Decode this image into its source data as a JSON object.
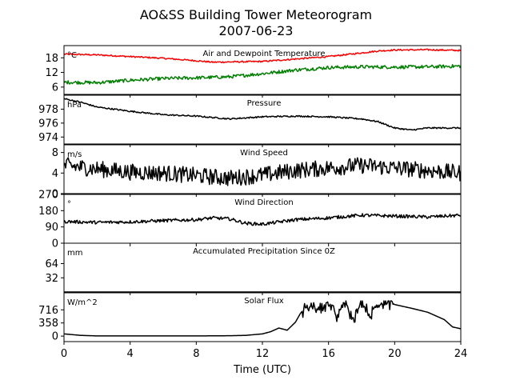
{
  "chart_data": {
    "type": "line",
    "title": "AO&SS Building Tower Meteorogram",
    "subtitle": "2007-06-23",
    "xlabel": "Time (UTC)",
    "xlim": [
      0,
      24
    ],
    "xticks": [
      0,
      4,
      8,
      12,
      16,
      20,
      24
    ],
    "panels": [
      {
        "id": "temp",
        "title": "Air and Dewpoint Temperature",
        "unit": "°C",
        "ylim": [
          3,
          23
        ],
        "yticks": [
          6,
          12,
          18
        ],
        "series": [
          {
            "color": "#ff0000",
            "noise": 0.3,
            "x": [
              0,
              2,
              4,
              6,
              8,
              9,
              10,
              12,
              14,
              16,
              18,
              19,
              20,
              22,
              24
            ],
            "y": [
              19.5,
              19.2,
              18.5,
              17.8,
              16.8,
              16.2,
              16.3,
              16.5,
              17.5,
              18.5,
              20.0,
              20.8,
              21.2,
              21.3,
              21.0
            ]
          },
          {
            "color": "#008000",
            "noise": 0.7,
            "x": [
              0,
              2,
              4,
              6,
              8,
              10,
              12,
              14,
              16,
              18,
              20,
              22,
              24
            ],
            "y": [
              8.0,
              7.8,
              8.8,
              9.5,
              9.8,
              10.2,
              11.5,
              13.0,
              14.0,
              14.3,
              14.2,
              14.3,
              14.6
            ]
          }
        ]
      },
      {
        "id": "pressure",
        "title": "Pressure",
        "unit": "hPa",
        "ylim": [
          973,
          980
        ],
        "yticks": [
          974,
          976,
          978
        ],
        "series": [
          {
            "color": "#000000",
            "noise": 0.1,
            "x": [
              0,
              1,
              2,
              4,
              6,
              8,
              10,
              12,
              14,
              16,
              18,
              19,
              20,
              21,
              22,
              24
            ],
            "y": [
              979.5,
              979.0,
              978.3,
              977.7,
              977.2,
              977.0,
              976.6,
              976.9,
              977.0,
              976.9,
              976.6,
              976.2,
              975.3,
              975.0,
              975.3,
              975.3
            ]
          }
        ]
      },
      {
        "id": "wind_speed",
        "title": "Wind Speed",
        "unit": "m/s",
        "ylim": [
          0,
          9.5
        ],
        "yticks": [
          0,
          4,
          8
        ],
        "series": [
          {
            "color": "#000000",
            "noise": 1.6,
            "x": [
              0,
              2,
              4,
              6,
              8,
              10,
              12,
              14,
              16,
              18,
              20,
              22,
              24
            ],
            "y": [
              5.5,
              4.8,
              4.2,
              4.0,
              3.5,
              3.0,
              3.6,
              4.5,
              5.0,
              5.5,
              5.0,
              4.5,
              4.0
            ]
          }
        ]
      },
      {
        "id": "wind_dir",
        "title": "Wind Direction",
        "unit": "°",
        "ylim": [
          0,
          270
        ],
        "yticks": [
          0,
          90,
          180,
          270
        ],
        "series": [
          {
            "color": "#000000",
            "noise": 9,
            "x": [
              0,
              2,
              4,
              6,
              8,
              9,
              10,
              11,
              12,
              14,
              16,
              18,
              20,
              22,
              24
            ],
            "y": [
              120,
              115,
              118,
              125,
              130,
              140,
              135,
              110,
              105,
              130,
              140,
              155,
              150,
              145,
              155
            ]
          }
        ]
      },
      {
        "id": "precip",
        "title": "Accumulated Precipitation Since 0Z",
        "unit": "mm",
        "ylim": [
          0,
          110
        ],
        "yticks": [
          32,
          64
        ],
        "series": [
          {
            "color": "#000000",
            "noise": 0,
            "x": [
              0,
              24
            ],
            "y": [
              0,
              0
            ]
          }
        ]
      },
      {
        "id": "solar",
        "title": "Solar Flux",
        "unit": "W/m^2",
        "ylim": [
          -150,
          1180
        ],
        "yticks": [
          0,
          358,
          716
        ],
        "series": [
          {
            "color": "#000000",
            "noise": 0,
            "x": [
              0,
              1,
              2,
              4,
              6,
              8,
              10,
              11,
              12,
              12.5,
              13,
              13.5,
              14,
              14.3,
              14.6,
              15,
              15.5,
              16,
              16.5,
              17,
              17.5,
              18,
              18.5,
              19,
              19.5,
              20,
              21,
              22,
              22.5,
              23,
              23.5,
              24
            ],
            "y": [
              60,
              20,
              5,
              5,
              5,
              5,
              10,
              20,
              60,
              120,
              220,
              160,
              380,
              620,
              780,
              800,
              700,
              850,
              550,
              950,
              450,
              950,
              500,
              900,
              900,
              860,
              760,
              650,
              550,
              450,
              250,
              200
            ]
          }
        ]
      }
    ]
  }
}
